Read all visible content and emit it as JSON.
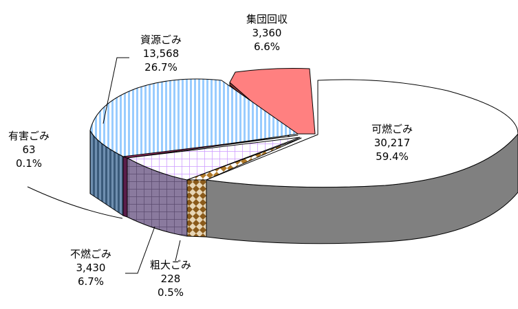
{
  "chart_data": {
    "type": "pie",
    "variant": "3d-exploded",
    "title": "",
    "categories": [
      "可燃ごみ",
      "集団回収",
      "資源ごみ",
      "有害ごみ",
      "不燃ごみ",
      "粗大ごみ"
    ],
    "values": [
      30217,
      3360,
      13568,
      63,
      3430,
      228
    ],
    "percent_labels": [
      "59.4%",
      "6.6%",
      "26.7%",
      "0.1%",
      "6.7%",
      "0.5%"
    ],
    "value_labels": [
      "30,217",
      "3,360",
      "13,568",
      "63",
      "3,430",
      "228"
    ],
    "colors": [
      "#ffffff",
      "#ff8080",
      "#99ccff",
      "#993366",
      "#ccccff",
      "#cc9933"
    ],
    "legend": "none",
    "data_labels": "outside-with-leader-lines"
  }
}
